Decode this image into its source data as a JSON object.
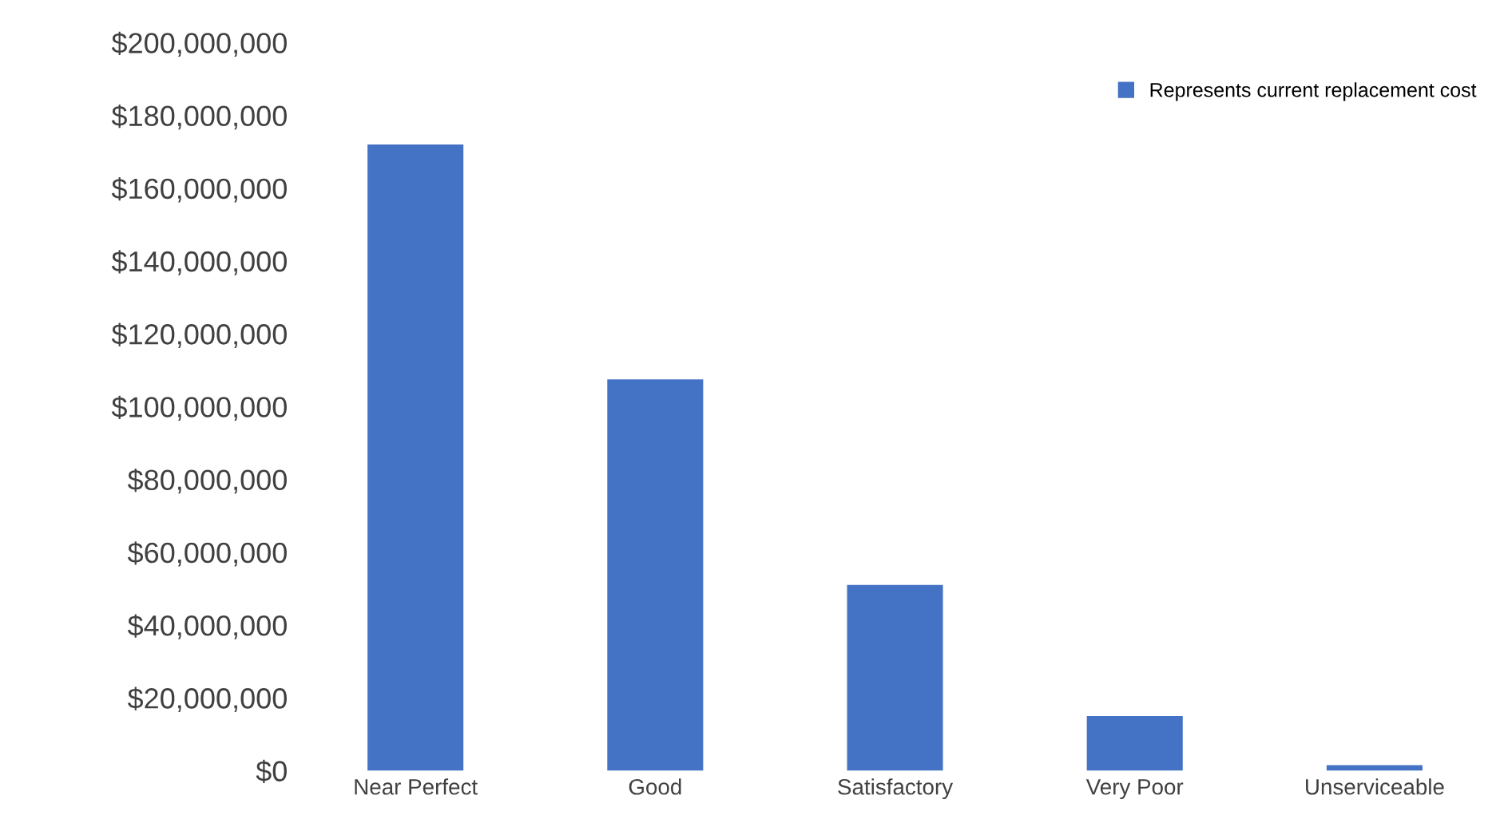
{
  "chart_data": {
    "type": "bar",
    "categories": [
      "Near Perfect",
      "Good",
      "Satisfactory",
      "Very Poor",
      "Unserviceable"
    ],
    "series": [
      {
        "name": "Represents current replacement cost",
        "color": "#4472c4",
        "values": [
          172000000,
          107500000,
          51000000,
          15000000,
          1500000
        ]
      }
    ],
    "ylim": [
      0,
      200000000
    ],
    "yticks": [
      {
        "value": 0,
        "label": "$0"
      },
      {
        "value": 20000000,
        "label": "$20,000,000"
      },
      {
        "value": 40000000,
        "label": "$40,000,000"
      },
      {
        "value": 60000000,
        "label": "$60,000,000"
      },
      {
        "value": 80000000,
        "label": "$80,000,000"
      },
      {
        "value": 100000000,
        "label": "$100,000,000"
      },
      {
        "value": 120000000,
        "label": "$120,000,000"
      },
      {
        "value": 140000000,
        "label": "$140,000,000"
      },
      {
        "value": 160000000,
        "label": "$160,000,000"
      },
      {
        "value": 180000000,
        "label": "$180,000,000"
      },
      {
        "value": 200000000,
        "label": "$200,000,000"
      }
    ],
    "grid": false,
    "legend": "top right"
  }
}
